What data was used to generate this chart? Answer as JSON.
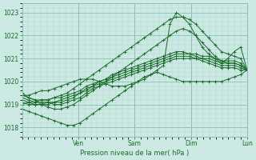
{
  "bg_color": "#cce9e3",
  "grid_color_minor": "#aed4ce",
  "grid_color_major": "#88bfb8",
  "line_color": "#1a6b2a",
  "ylabel_ticks": [
    1018,
    1019,
    1020,
    1021,
    1022,
    1023
  ],
  "ylim": [
    1017.6,
    1023.4
  ],
  "xlim": [
    0,
    36
  ],
  "xlabel": "Pression niveau de la mer( hPa )",
  "day_labels": [
    "Ven",
    "Sam",
    "Dim",
    "Lun"
  ],
  "day_positions": [
    9,
    18,
    27,
    36
  ],
  "series": [
    [
      1019.1,
      1019.0,
      1019.0,
      1019.0,
      1019.1,
      1019.0,
      1019.0,
      1019.1,
      1019.2,
      1019.3,
      1019.5,
      1019.7,
      1019.8,
      1019.9,
      1020.0,
      1020.1,
      1020.2,
      1020.3,
      1020.4,
      1020.5,
      1020.6,
      1020.7,
      1020.8,
      1020.9,
      1021.0,
      1021.0,
      1021.0,
      1021.0,
      1020.9,
      1020.8,
      1020.7,
      1020.6,
      1020.6,
      1020.6,
      1020.5,
      1020.5
    ],
    [
      1019.2,
      1019.1,
      1019.0,
      1019.0,
      1019.0,
      1019.1,
      1019.1,
      1019.2,
      1019.3,
      1019.5,
      1019.6,
      1019.8,
      1019.9,
      1020.0,
      1020.1,
      1020.2,
      1020.3,
      1020.4,
      1020.5,
      1020.6,
      1020.7,
      1020.8,
      1020.9,
      1021.0,
      1021.1,
      1021.1,
      1021.1,
      1021.0,
      1021.0,
      1020.9,
      1020.8,
      1020.7,
      1020.7,
      1020.7,
      1020.6,
      1020.5
    ],
    [
      1019.3,
      1019.2,
      1019.1,
      1019.1,
      1019.1,
      1019.1,
      1019.2,
      1019.3,
      1019.4,
      1019.5,
      1019.7,
      1019.8,
      1020.0,
      1020.1,
      1020.2,
      1020.3,
      1020.4,
      1020.5,
      1020.6,
      1020.7,
      1020.8,
      1020.9,
      1021.0,
      1021.1,
      1021.2,
      1021.2,
      1021.2,
      1021.1,
      1021.0,
      1021.0,
      1020.9,
      1020.8,
      1020.8,
      1020.8,
      1020.7,
      1020.5
    ],
    [
      1019.4,
      1019.3,
      1019.2,
      1019.2,
      1019.2,
      1019.3,
      1019.3,
      1019.4,
      1019.5,
      1019.6,
      1019.8,
      1019.9,
      1020.0,
      1020.1,
      1020.3,
      1020.4,
      1020.5,
      1020.6,
      1020.7,
      1020.8,
      1020.9,
      1021.0,
      1021.1,
      1021.2,
      1021.3,
      1021.3,
      1021.2,
      1021.2,
      1021.1,
      1021.1,
      1021.0,
      1020.9,
      1020.9,
      1020.9,
      1020.8,
      1020.5
    ],
    [
      1019.0,
      1019.1,
      1019.1,
      1019.2,
      1019.2,
      1019.3,
      1019.4,
      1019.5,
      1019.7,
      1019.9,
      1020.1,
      1020.3,
      1020.5,
      1020.7,
      1020.9,
      1021.1,
      1021.3,
      1021.5,
      1021.7,
      1021.9,
      1022.1,
      1022.3,
      1022.5,
      1022.7,
      1022.8,
      1022.8,
      1022.7,
      1022.5,
      1022.2,
      1021.9,
      1021.6,
      1021.3,
      1021.2,
      1021.1,
      1021.0,
      1020.5
    ],
    [
      1019.5,
      1019.3,
      1019.2,
      1019.0,
      1018.9,
      1018.8,
      1018.8,
      1018.9,
      1019.0,
      1019.2,
      1019.4,
      1019.6,
      1019.8,
      1020.0,
      1020.2,
      1020.4,
      1020.6,
      1020.8,
      1021.0,
      1021.2,
      1021.4,
      1021.6,
      1021.8,
      1022.0,
      1022.2,
      1022.3,
      1022.2,
      1022.0,
      1021.7,
      1021.4,
      1021.1,
      1020.9,
      1020.8,
      1020.8,
      1020.7,
      1020.5
    ],
    [
      1019.4,
      1019.4,
      1019.5,
      1019.6,
      1019.6,
      1019.7,
      1019.8,
      1019.9,
      1020.0,
      1020.1,
      1020.1,
      1020.1,
      1020.0,
      1019.9,
      1019.8,
      1019.8,
      1019.8,
      1019.9,
      1020.0,
      1020.1,
      1020.3,
      1020.5,
      1020.7,
      1022.5,
      1023.0,
      1022.8,
      1022.5,
      1022.0,
      1021.5,
      1021.2,
      1021.0,
      1020.8,
      1021.0,
      1021.3,
      1021.5,
      1020.5
    ],
    [
      1018.8,
      1018.7,
      1018.6,
      1018.5,
      1018.4,
      1018.3,
      1018.2,
      1018.1,
      1018.1,
      1018.2,
      1018.4,
      1018.6,
      1018.8,
      1019.0,
      1019.2,
      1019.4,
      1019.6,
      1019.8,
      1020.0,
      1020.2,
      1020.3,
      1020.4,
      1020.3,
      1020.2,
      1020.1,
      1020.0,
      1020.0,
      1020.0,
      1020.0,
      1020.0,
      1020.0,
      1020.0,
      1020.1,
      1020.2,
      1020.3,
      1020.5
    ]
  ]
}
